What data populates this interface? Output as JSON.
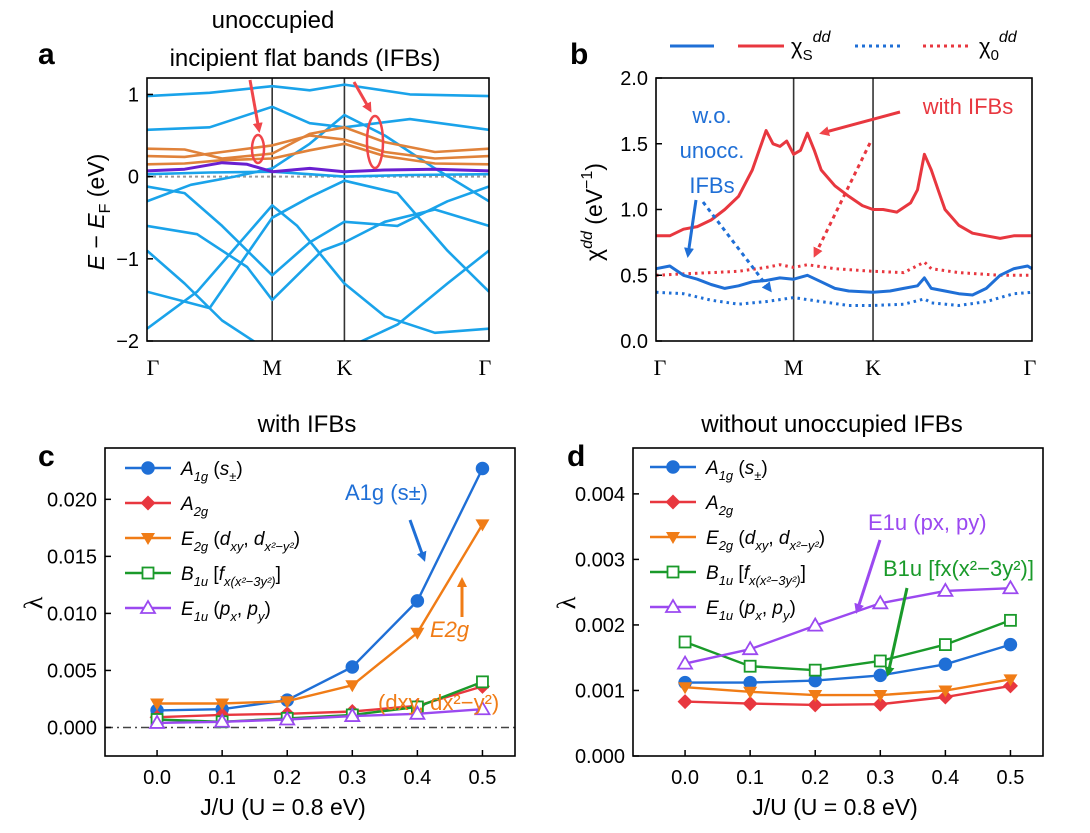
{
  "colors": {
    "blue": "#1f6fd6",
    "red": "#e8373f",
    "orange": "#f07c16",
    "green": "#1a9a2a",
    "purple": "#9b49f0",
    "band_blue": "#1aa3ea",
    "band_orange": "#e0823a",
    "band_purple": "#6a1fd0",
    "annot_red": "#f0454a"
  },
  "chart_data": [
    {
      "id": "a",
      "type": "line",
      "panel_label": "a",
      "title": "unoccupied\nincipient flat bands (IFBs)",
      "title_lines": [
        "unoccupied",
        "incipient flat bands (IFBs)"
      ],
      "xlabel": "",
      "ylabel": "E − E_F (eV)",
      "ylabel_parts": {
        "E1": "E",
        "minus": " − ",
        "E2": "E",
        "sub": "F",
        "unit": " (eV)"
      },
      "x_ticks": [
        "Γ",
        "M",
        "K",
        "Γ"
      ],
      "x_tick_positions": [
        0,
        1,
        1.577,
        2.732
      ],
      "xlim": [
        0,
        2.732
      ],
      "ylim": [
        -2,
        1.2
      ],
      "y_ticks": [
        "1",
        "0",
        "−1",
        "−2"
      ],
      "y_tick_values": [
        1,
        0,
        -1,
        -2
      ],
      "fermi_level": 0,
      "bands_cyan": [
        {
          "x": [
            0,
            0.5,
            1,
            1.3,
            1.577,
            2.1,
            2.732
          ],
          "y": [
            0.98,
            1.02,
            1.1,
            1.05,
            1.12,
            1.0,
            0.98
          ]
        },
        {
          "x": [
            0,
            0.5,
            1,
            1.3,
            1.577,
            2.1,
            2.732
          ],
          "y": [
            0.57,
            0.6,
            0.85,
            0.65,
            0.6,
            0.7,
            0.57
          ]
        },
        {
          "x": [
            0,
            0.3,
            0.6,
            1,
            1.3,
            1.577,
            2,
            2.4,
            2.732
          ],
          "y": [
            -0.12,
            -0.2,
            -0.6,
            -1.2,
            -0.8,
            -0.55,
            -0.6,
            -0.3,
            -0.12
          ]
        },
        {
          "x": [
            0,
            0.4,
            0.8,
            1,
            1.2,
            1.4,
            1.577,
            1.9,
            2.3,
            2.732
          ],
          "y": [
            -0.6,
            -0.7,
            -1.1,
            -1.5,
            -1.2,
            -0.9,
            -0.8,
            -0.55,
            -0.4,
            -0.6
          ]
        },
        {
          "x": [
            0,
            0.3,
            0.6,
            0.9,
            1,
            1.577,
            2,
            2.4,
            2.732
          ],
          "y": [
            -0.9,
            -1.3,
            -1.75,
            -2.05,
            -2.1,
            -2.1,
            -1.8,
            -1.3,
            -0.9
          ]
        },
        {
          "x": [
            0,
            0.5,
            1,
            1.3,
            1.577,
            2.0,
            2.4,
            2.732
          ],
          "y": [
            -1.4,
            -1.6,
            -0.5,
            -0.25,
            -0.05,
            -0.2,
            -0.9,
            -1.4
          ]
        },
        {
          "x": [
            0,
            0.4,
            0.8,
            1,
            1.2,
            1.577,
            1.9,
            2.3,
            2.732
          ],
          "y": [
            -1.85,
            -1.4,
            -0.7,
            -0.35,
            -0.6,
            -1.3,
            -1.7,
            -1.9,
            -1.85
          ]
        },
        {
          "x": [
            0,
            0.5,
            1,
            1.577,
            2.1,
            2.732
          ],
          "y": [
            0.03,
            0.05,
            0.06,
            0.0,
            0.02,
            0.03
          ]
        },
        {
          "x": [
            0,
            0.35,
            0.7,
            1,
            1.3,
            1.577,
            1.9,
            2.3,
            2.732
          ],
          "y": [
            -0.3,
            -0.1,
            0.0,
            0.1,
            0.4,
            0.75,
            0.5,
            0.1,
            -0.3
          ]
        }
      ],
      "bands_orange": [
        {
          "x": [
            0,
            0.3,
            0.6,
            1,
            1.3,
            1.577,
            1.9,
            2.3,
            2.732
          ],
          "y": [
            0.34,
            0.33,
            0.22,
            0.28,
            0.52,
            0.6,
            0.42,
            0.3,
            0.34
          ]
        },
        {
          "x": [
            0,
            0.3,
            0.6,
            1,
            1.3,
            1.577,
            1.9,
            2.3,
            2.732
          ],
          "y": [
            0.25,
            0.24,
            0.3,
            0.38,
            0.5,
            0.45,
            0.3,
            0.22,
            0.25
          ]
        },
        {
          "x": [
            0,
            0.3,
            0.6,
            1,
            1.3,
            1.577,
            1.9,
            2.3,
            2.732
          ],
          "y": [
            0.15,
            0.16,
            0.2,
            0.22,
            0.32,
            0.4,
            0.25,
            0.16,
            0.15
          ]
        }
      ],
      "band_purple": {
        "x": [
          0,
          0.3,
          0.6,
          0.8,
          1,
          1.3,
          1.577,
          1.9,
          2.3,
          2.732
        ],
        "y": [
          0.07,
          0.09,
          0.17,
          0.15,
          0.06,
          0.1,
          0.06,
          0.08,
          0.09,
          0.07
        ]
      }
    },
    {
      "id": "b",
      "type": "line",
      "panel_label": "b",
      "xlabel": "",
      "ylabel": "χ^dd (eV^−1)",
      "ylabel_parts": {
        "chi": "χ",
        "sup": "dd",
        "unit": " (eV",
        "exp": "−1",
        "close": ")"
      },
      "x_ticks": [
        "Γ",
        "M",
        "K",
        "Γ"
      ],
      "x_tick_positions": [
        0,
        1,
        1.577,
        2.732
      ],
      "xlim": [
        0,
        2.732
      ],
      "ylim": [
        0,
        2.0
      ],
      "y_ticks": [
        "0.0",
        "0.5",
        "1.0",
        "1.5",
        "2.0"
      ],
      "y_tick_values": [
        0,
        0.5,
        1.0,
        1.5,
        2.0
      ],
      "legend": [
        {
          "name": "χS^dd",
          "parts": {
            "chi": "χ",
            "sub": "S",
            "sup": "dd"
          },
          "style": "solid",
          "colors": [
            "#1f6fd6",
            "#e8373f"
          ]
        },
        {
          "name": "χ0^dd",
          "parts": {
            "chi": "χ",
            "sub": "0",
            "sup": "dd"
          },
          "style": "dotted",
          "colors": [
            "#1f6fd6",
            "#e8373f"
          ]
        }
      ],
      "series": [
        {
          "name": "χS with IFBs",
          "color": "#e8373f",
          "style": "solid",
          "x": [
            0,
            0.1,
            0.2,
            0.3,
            0.4,
            0.5,
            0.6,
            0.7,
            0.75,
            0.8,
            0.85,
            0.9,
            0.95,
            1.0,
            1.05,
            1.1,
            1.15,
            1.2,
            1.3,
            1.4,
            1.5,
            1.577,
            1.65,
            1.75,
            1.85,
            1.9,
            1.95,
            2.0,
            2.05,
            2.1,
            2.2,
            2.3,
            2.4,
            2.5,
            2.6,
            2.7,
            2.732
          ],
          "y": [
            0.8,
            0.8,
            0.85,
            0.87,
            0.92,
            1.0,
            1.1,
            1.3,
            1.45,
            1.6,
            1.5,
            1.48,
            1.52,
            1.42,
            1.45,
            1.58,
            1.45,
            1.3,
            1.18,
            1.1,
            1.03,
            1.0,
            1.0,
            0.98,
            1.05,
            1.15,
            1.42,
            1.3,
            1.15,
            1.0,
            0.88,
            0.82,
            0.8,
            0.78,
            0.8,
            0.8,
            0.8
          ]
        },
        {
          "name": "χ0 with IFBs",
          "color": "#e8373f",
          "style": "dotted",
          "x": [
            0,
            0.2,
            0.4,
            0.6,
            0.8,
            0.9,
            1.0,
            1.1,
            1.3,
            1.577,
            1.8,
            1.95,
            2.0,
            2.2,
            2.5,
            2.732
          ],
          "y": [
            0.5,
            0.51,
            0.52,
            0.53,
            0.56,
            0.58,
            0.56,
            0.58,
            0.55,
            0.53,
            0.52,
            0.6,
            0.55,
            0.52,
            0.5,
            0.5
          ]
        },
        {
          "name": "χS w.o. unocc. IFBs",
          "color": "#1f6fd6",
          "style": "solid",
          "x": [
            0,
            0.1,
            0.2,
            0.3,
            0.4,
            0.5,
            0.6,
            0.7,
            0.8,
            0.9,
            1.0,
            1.1,
            1.2,
            1.3,
            1.4,
            1.577,
            1.7,
            1.8,
            1.9,
            1.95,
            2.0,
            2.1,
            2.2,
            2.3,
            2.4,
            2.5,
            2.6,
            2.7,
            2.732
          ],
          "y": [
            0.55,
            0.57,
            0.5,
            0.47,
            0.43,
            0.4,
            0.42,
            0.45,
            0.46,
            0.48,
            0.47,
            0.5,
            0.45,
            0.4,
            0.38,
            0.37,
            0.38,
            0.4,
            0.42,
            0.48,
            0.4,
            0.38,
            0.36,
            0.35,
            0.4,
            0.5,
            0.55,
            0.57,
            0.55
          ]
        },
        {
          "name": "χ0 w.o. unocc. IFBs",
          "color": "#1f6fd6",
          "style": "dotted",
          "x": [
            0,
            0.2,
            0.4,
            0.6,
            0.8,
            1.0,
            1.2,
            1.4,
            1.577,
            1.8,
            1.95,
            2.0,
            2.2,
            2.4,
            2.6,
            2.732
          ],
          "y": [
            0.37,
            0.36,
            0.31,
            0.28,
            0.3,
            0.33,
            0.3,
            0.27,
            0.27,
            0.28,
            0.32,
            0.29,
            0.27,
            0.3,
            0.36,
            0.37
          ]
        }
      ],
      "annotations": [
        "w.o.",
        "unocc.",
        "IFBs",
        "with IFBs"
      ]
    },
    {
      "id": "c",
      "type": "line",
      "panel_label": "c",
      "title": "with IFBs",
      "xlabel": "J/U  (U = 0.8 eV)",
      "ylabel": "λ",
      "x": [
        0.0,
        0.1,
        0.2,
        0.3,
        0.4,
        0.5
      ],
      "x_ticks": [
        "0.0",
        "0.1",
        "0.2",
        "0.3",
        "0.4",
        "0.5"
      ],
      "xlim": [
        -0.08,
        0.55
      ],
      "ylim": [
        -0.0025,
        0.0245
      ],
      "y_ticks": [
        "0.000",
        "0.005",
        "0.010",
        "0.015",
        "0.020"
      ],
      "y_tick_values": [
        0,
        0.005,
        0.01,
        0.015,
        0.02
      ],
      "zero_line": 0,
      "series": [
        {
          "name": "A1g (s±)",
          "color": "#1f6fd6",
          "marker": "circle",
          "values": [
            0.0015,
            0.0016,
            0.0024,
            0.0053,
            0.0111,
            0.0227
          ]
        },
        {
          "name": "A2g",
          "color": "#e8373f",
          "marker": "diamond",
          "values": [
            0.0009,
            0.0011,
            0.0012,
            0.0014,
            0.0019,
            0.0036
          ]
        },
        {
          "name": "E2g (dxy, dx²−y²)",
          "color": "#f07c16",
          "marker": "triangle-down",
          "values": [
            0.0021,
            0.0021,
            0.0023,
            0.0037,
            0.0083,
            0.0178
          ]
        },
        {
          "name": "B1u [fx(x²−3y²)]",
          "color": "#1a9a2a",
          "marker": "square-open",
          "values": [
            0.0007,
            0.0005,
            0.0008,
            0.0011,
            0.0018,
            0.004
          ]
        },
        {
          "name": "E1u (px, py)",
          "color": "#9b49f0",
          "marker": "triangle-up-open",
          "values": [
            0.0004,
            0.0005,
            0.0007,
            0.001,
            0.0012,
            0.0016
          ]
        }
      ],
      "annotations": [
        "A1g (s±)",
        "E2g",
        "(dxy, dx²−y²)"
      ]
    },
    {
      "id": "d",
      "type": "line",
      "panel_label": "d",
      "title": "without unoccupied IFBs",
      "xlabel": "J/U  (U = 0.8 eV)",
      "ylabel": "λ",
      "x": [
        0.0,
        0.1,
        0.2,
        0.3,
        0.4,
        0.5
      ],
      "x_ticks": [
        "0.0",
        "0.1",
        "0.2",
        "0.3",
        "0.4",
        "0.5"
      ],
      "xlim": [
        -0.08,
        0.55
      ],
      "ylim": [
        0.0,
        0.0047
      ],
      "y_ticks": [
        "0.000",
        "0.001",
        "0.002",
        "0.003",
        "0.004"
      ],
      "y_tick_values": [
        0,
        0.001,
        0.002,
        0.003,
        0.004
      ],
      "series": [
        {
          "name": "A1g (s±)",
          "color": "#1f6fd6",
          "marker": "circle",
          "values": [
            0.00112,
            0.00112,
            0.00115,
            0.00123,
            0.0014,
            0.0017
          ]
        },
        {
          "name": "A2g",
          "color": "#e8373f",
          "marker": "diamond",
          "values": [
            0.00083,
            0.0008,
            0.00078,
            0.00079,
            0.0009,
            0.00107
          ]
        },
        {
          "name": "E2g (dxy, dx²−y²)",
          "color": "#f07c16",
          "marker": "triangle-down",
          "values": [
            0.00105,
            0.00098,
            0.00093,
            0.00093,
            0.001,
            0.00117
          ]
        },
        {
          "name": "B1u [fx(x²−3y²)]",
          "color": "#1a9a2a",
          "marker": "square-open",
          "values": [
            0.00174,
            0.00137,
            0.00131,
            0.00145,
            0.0017,
            0.00207
          ]
        },
        {
          "name": "E1u (px, py)",
          "color": "#9b49f0",
          "marker": "triangle-up-open",
          "values": [
            0.00141,
            0.00163,
            0.00199,
            0.00233,
            0.00252,
            0.00256
          ]
        }
      ],
      "annotations": [
        "E1u (px, py)",
        "B1u [fx(x²−3y²)]"
      ]
    }
  ]
}
